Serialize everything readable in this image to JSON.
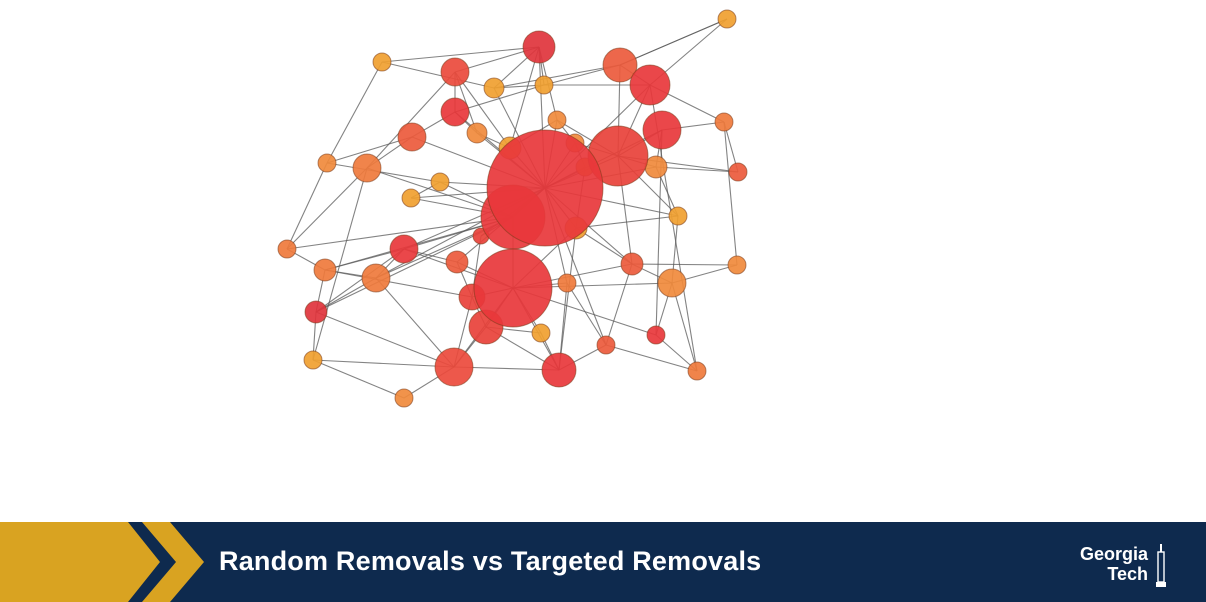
{
  "slide": {
    "title": "Random Removals vs Targeted Removals"
  },
  "logo": {
    "line1": "Georgia",
    "line2": "Tech"
  },
  "colors": {
    "bar_background": "#0e2a4e",
    "chevron_gold": "#d9a321",
    "node_red": "#e8373b",
    "node_orange": "#f0a030",
    "edge_gray": "#5a5a5a"
  },
  "icons": [
    "chevron-arrow",
    "tech-tower-icon"
  ]
}
